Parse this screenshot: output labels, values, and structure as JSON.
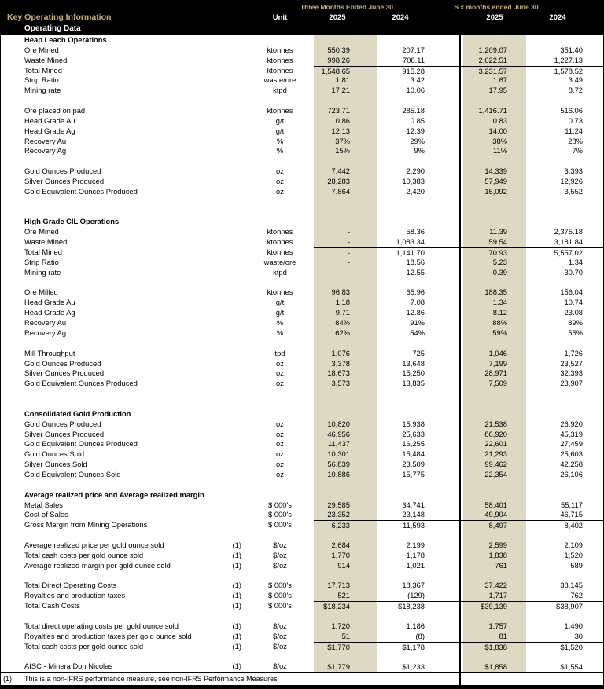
{
  "colors": {
    "header_bg": "#000000",
    "header_accent": "#C8B272",
    "stripe": "#DDD9C3",
    "text": "#000000"
  },
  "header": {
    "title": "Key Operating Information",
    "subtitle": "Operating Data",
    "unit_label": "Unit",
    "groups": [
      {
        "label": "Three Months Ended June 30",
        "years": [
          "2025",
          "2024"
        ]
      },
      {
        "label": "Six months ended June 30",
        "years": [
          "2025",
          "2024"
        ]
      }
    ]
  },
  "sections": [
    {
      "title": "Heap Leach Operations",
      "gap_before": 0,
      "rows": [
        {
          "label": "Ore Mined",
          "fn": "",
          "unit": "ktonnes",
          "v": [
            "550.39",
            "207.17",
            "1,209.07",
            "351.40"
          ]
        },
        {
          "label": "Waste Mined",
          "fn": "",
          "unit": "ktonnes",
          "v": [
            "998.26",
            "708.11",
            "2,022.51",
            "1,227.13"
          ]
        },
        {
          "label": "Total Mined",
          "fn": "",
          "unit": "ktonnes",
          "v": [
            "1,548.65",
            "915.28",
            "3,231.57",
            "1,578.52"
          ],
          "line": true
        },
        {
          "label": "Strip Ratio",
          "fn": "",
          "unit": "waste/ore",
          "v": [
            "1.81",
            "3.42",
            "1.67",
            "3.49"
          ]
        },
        {
          "label": "Mining rate",
          "fn": "",
          "unit": "ktpd",
          "v": [
            "17.21",
            "10.06",
            "17.95",
            "8.72"
          ]
        },
        {
          "spacer": true
        },
        {
          "label": "Ore placed on pad",
          "fn": "",
          "unit": "ktonnes",
          "v": [
            "723.71",
            "285.18",
            "1,416.71",
            "516.06"
          ]
        },
        {
          "label": "Head Grade Au",
          "fn": "",
          "unit": "g/t",
          "v": [
            "0.86",
            "0.85",
            "0.83",
            "0.73"
          ]
        },
        {
          "label": "Head Grade Ag",
          "fn": "",
          "unit": "g/t",
          "v": [
            "12.13",
            "12.39",
            "14.00",
            "11.24"
          ]
        },
        {
          "label": "Recovery Au",
          "fn": "",
          "unit": "%",
          "v": [
            "37%",
            "29%",
            "38%",
            "28%"
          ]
        },
        {
          "label": "Recovery Ag",
          "fn": "",
          "unit": "%",
          "v": [
            "15%",
            "9%",
            "11%",
            "7%"
          ]
        },
        {
          "spacer": true
        },
        {
          "label": "Gold Ounces Produced",
          "fn": "",
          "unit": "oz",
          "v": [
            "7,442",
            "2,290",
            "14,339",
            "3,393"
          ]
        },
        {
          "label": "Silver Ounces Produced",
          "fn": "",
          "unit": "oz",
          "v": [
            "28,283",
            "10,383",
            "57,949",
            "12,926"
          ]
        },
        {
          "label": "Gold Equivalent Ounces Produced",
          "fn": "",
          "unit": "oz",
          "v": [
            "7,864",
            "2,420",
            "15,092",
            "3,552"
          ]
        }
      ]
    },
    {
      "title": "High Grade CIL Operations",
      "gap_before": 2,
      "rows": [
        {
          "label": "Ore Mined",
          "fn": "",
          "unit": "ktonnes",
          "v": [
            "-",
            "58.36",
            "11.39",
            "2,375.18"
          ]
        },
        {
          "label": "Waste Mined",
          "fn": "",
          "unit": "ktonnes",
          "v": [
            "-",
            "1,083.34",
            "59.54",
            "3,181.84"
          ]
        },
        {
          "label": "Total Mined",
          "fn": "",
          "unit": "ktonnes",
          "v": [
            "-",
            "1,141.70",
            "70.93",
            "5,557.02"
          ],
          "line": true
        },
        {
          "label": "Strip Ratio",
          "fn": "",
          "unit": "waste/ore",
          "v": [
            "-",
            "18.56",
            "5.23",
            "1.34"
          ]
        },
        {
          "label": "Mining rate",
          "fn": "",
          "unit": "ktpd",
          "v": [
            "-",
            "12.55",
            "0.39",
            "30.70"
          ]
        },
        {
          "spacer": true
        },
        {
          "label": "Ore Milled",
          "fn": "",
          "unit": "ktonnes",
          "v": [
            "96.83",
            "65.96",
            "188.35",
            "156.04"
          ]
        },
        {
          "label": "Head Grade Au",
          "fn": "",
          "unit": "g/t",
          "v": [
            "1.18",
            "7.08",
            "1.34",
            "10.74"
          ]
        },
        {
          "label": "Head Grade Ag",
          "fn": "",
          "unit": "g/t",
          "v": [
            "9.71",
            "12.86",
            "8.12",
            "23.08"
          ]
        },
        {
          "label": "Recovery Au",
          "fn": "",
          "unit": "%",
          "v": [
            "84%",
            "91%",
            "88%",
            "89%"
          ]
        },
        {
          "label": "Recovery Ag",
          "fn": "",
          "unit": "%",
          "v": [
            "62%",
            "54%",
            "59%",
            "55%"
          ]
        },
        {
          "spacer": true
        },
        {
          "label": "Mill Throughput",
          "fn": "",
          "unit": "tpd",
          "v": [
            "1,076",
            "725",
            "1,046",
            "1,726"
          ]
        },
        {
          "label": "Gold Ounces Produced",
          "fn": "",
          "unit": "oz",
          "v": [
            "3,378",
            "13,648",
            "7,199",
            "23,527"
          ]
        },
        {
          "label": "Silver Ounces Produced",
          "fn": "",
          "unit": "oz",
          "v": [
            "18,673",
            "15,250",
            "28,971",
            "32,393"
          ]
        },
        {
          "label": "Gold Equivalent Ounces Produced",
          "fn": "",
          "unit": "oz",
          "v": [
            "3,573",
            "13,835",
            "7,509",
            "23,907"
          ]
        }
      ]
    },
    {
      "title": "Consolidated Gold Production",
      "gap_before": 2,
      "rows": [
        {
          "label": "Gold Ounces Produced",
          "fn": "",
          "unit": "oz",
          "v": [
            "10,820",
            "15,938",
            "21,538",
            "26,920"
          ]
        },
        {
          "label": "Silver Ounces Produced",
          "fn": "",
          "unit": "oz",
          "v": [
            "46,956",
            "25,633",
            "86,920",
            "45,319"
          ]
        },
        {
          "label": "Gold Equivalent Ounces Produced",
          "fn": "",
          "unit": "oz",
          "v": [
            "11,437",
            "16,255",
            "22,601",
            "27,459"
          ]
        },
        {
          "label": "Gold Ounces Sold",
          "fn": "",
          "unit": "oz",
          "v": [
            "10,301",
            "15,484",
            "21,293",
            "25,603"
          ]
        },
        {
          "label": "Silver Ounces Sold",
          "fn": "",
          "unit": "oz",
          "v": [
            "56,839",
            "23,509",
            "99,462",
            "42,258"
          ]
        },
        {
          "label": "Gold Equivalent Ounces Sold",
          "fn": "",
          "unit": "oz",
          "v": [
            "10,886",
            "15,775",
            "22,354",
            "26,106"
          ]
        }
      ]
    },
    {
      "title": "Average realized price and Average realized margin",
      "gap_before": 1,
      "rows": [
        {
          "label": "Metal Sales",
          "fn": "",
          "unit": "$ 000's",
          "v": [
            "29,585",
            "34,741",
            "58,401",
            "55,117"
          ]
        },
        {
          "label": "Cost of Sales",
          "fn": "",
          "unit": "$ 000's",
          "v": [
            "23,352",
            "23,148",
            "49,904",
            "46,715"
          ]
        },
        {
          "label": "Gross Margin from Mining Operations",
          "fn": "",
          "unit": "$ 000's",
          "v": [
            "6,233",
            "11,593",
            "8,497",
            "8,402"
          ],
          "line": true
        },
        {
          "spacer": true
        },
        {
          "label": "Average realized price per gold ounce sold",
          "fn": "(1)",
          "unit": "$/oz",
          "v": [
            "2,684",
            "2,199",
            "2,599",
            "2,109"
          ]
        },
        {
          "label": "Total cash costs per gold ounce sold",
          "fn": "(1)",
          "unit": "$/oz",
          "v": [
            "1,770",
            "1,178",
            "1,838",
            "1,520"
          ]
        },
        {
          "label": "Average realized margin per gold ounce sold",
          "fn": "(1)",
          "unit": "$/oz",
          "v": [
            "914",
            "1,021",
            "761",
            "589"
          ]
        },
        {
          "spacer": true
        },
        {
          "label": "Total Direct Operating Costs",
          "fn": "(1)",
          "unit": "$ 000's",
          "v": [
            "17,713",
            "18,367",
            "37,422",
            "38,145"
          ]
        },
        {
          "label": "Royalties and production taxes",
          "fn": "(1)",
          "unit": "$ 000's",
          "v": [
            "521",
            "(129)",
            "1,717",
            "762"
          ]
        },
        {
          "label": "Total Cash Costs",
          "fn": "(1)",
          "unit": "$ 000's",
          "v": [
            "$18,234",
            "$18,238",
            "$39,139",
            "$38,907"
          ],
          "line": true
        },
        {
          "spacer": true
        },
        {
          "label": "Total direct operating costs per gold ounce sold",
          "fn": "(1)",
          "unit": "$/oz",
          "v": [
            "1,720",
            "1,186",
            "1,757",
            "1,490"
          ]
        },
        {
          "label": "Royalties and production taxes per gold ounce sold",
          "fn": "(1)",
          "unit": "$/oz",
          "v": [
            "51",
            "(8)",
            "81",
            "30"
          ]
        },
        {
          "label": "Total cash costs per gold ounce sold",
          "fn": "(1)",
          "unit": "$/oz",
          "v": [
            "$1,770",
            "$1,178",
            "$1,838",
            "$1,520"
          ],
          "line": true
        },
        {
          "spacer": true
        },
        {
          "label": "AISC - Minera Don Nicolas",
          "fn": "(1)",
          "unit": "$/oz",
          "v": [
            "$1,779",
            "$1,233",
            "$1,858",
            "$1,554"
          ],
          "line": true
        }
      ]
    }
  ],
  "footnote": {
    "marker": "(1)",
    "text": "This is a non-IFRS performance measure, see non-IFRS Performance Measures"
  }
}
